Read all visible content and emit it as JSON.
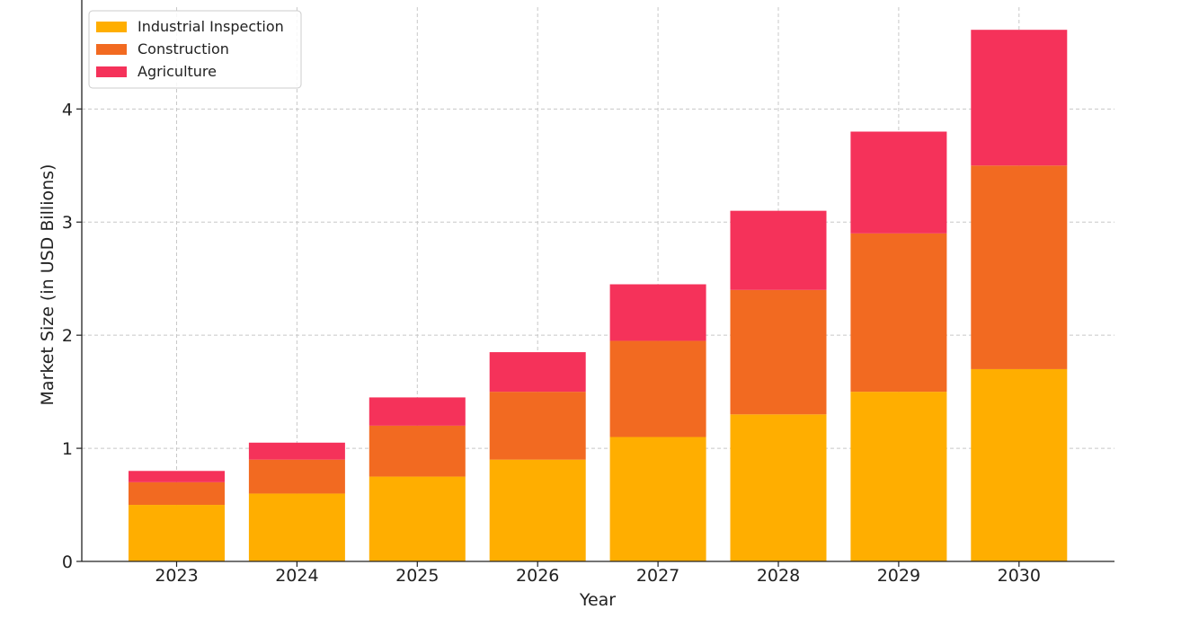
{
  "chart_data": {
    "type": "bar",
    "stacked": true,
    "title": "",
    "xlabel": "Year",
    "ylabel": "Market Size (in USD Billions)",
    "categories": [
      "2023",
      "2024",
      "2025",
      "2026",
      "2027",
      "2028",
      "2029",
      "2030"
    ],
    "series": [
      {
        "name": "Industrial Inspection",
        "color": "#FFAE00",
        "values": [
          0.5,
          0.6,
          0.75,
          0.9,
          1.1,
          1.3,
          1.5,
          1.7
        ]
      },
      {
        "name": "Construction",
        "color": "#F26A21",
        "values": [
          0.2,
          0.3,
          0.45,
          0.6,
          0.85,
          1.1,
          1.4,
          1.8
        ]
      },
      {
        "name": "Agriculture",
        "color": "#F5325A",
        "values": [
          0.1,
          0.15,
          0.25,
          0.35,
          0.5,
          0.7,
          0.9,
          1.2
        ]
      }
    ],
    "ylim": [
      0,
      4.9
    ],
    "yticks": [
      0,
      1,
      2,
      3,
      4
    ],
    "grid": true,
    "legend_position": "top-left"
  }
}
